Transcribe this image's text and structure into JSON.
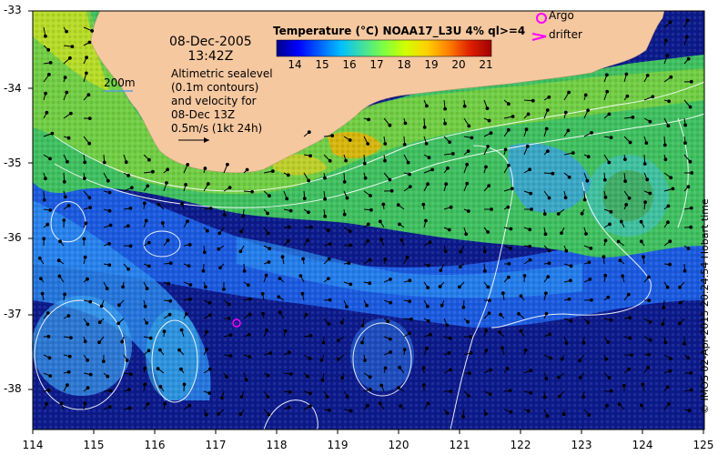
{
  "map": {
    "date": "08-Dec-2005",
    "time": "13:42Z",
    "description": [
      "Altimetric sealevel",
      "(0.1m contours)",
      "and velocity for",
      "08-Dec 13Z",
      "0.5m/s (1kt 24h)"
    ],
    "colorbar": {
      "title": "Temperature (°C) NOAA17_L3U 4% ql>=4",
      "ticks": [
        "14",
        "15",
        "16",
        "17",
        "18",
        "19",
        "20",
        "21"
      ],
      "colors": [
        "#00008b",
        "#0000ff",
        "#0060ff",
        "#00c0ff",
        "#40e0a0",
        "#80ff40",
        "#d0ff00",
        "#ffd000",
        "#ff8000",
        "#e02000",
        "#a00000"
      ]
    },
    "legend": {
      "argo": "Argo",
      "drifter": "drifter",
      "argo_color": "#ff00ff"
    },
    "scale_label": "200m",
    "credit": "© IMOS 02-Apr-2015 20:24:54 Hobart time",
    "x_ticks": [
      "114",
      "115",
      "116",
      "117",
      "118",
      "119",
      "120",
      "121",
      "122",
      "123",
      "124",
      "125"
    ],
    "y_ticks": [
      "-33",
      "-34",
      "-35",
      "-36",
      "-37",
      "-38"
    ],
    "land_color": "#f6c8a0",
    "contour_color": "#ffffff",
    "deep_ocean_color": "#0c1a8c"
  }
}
